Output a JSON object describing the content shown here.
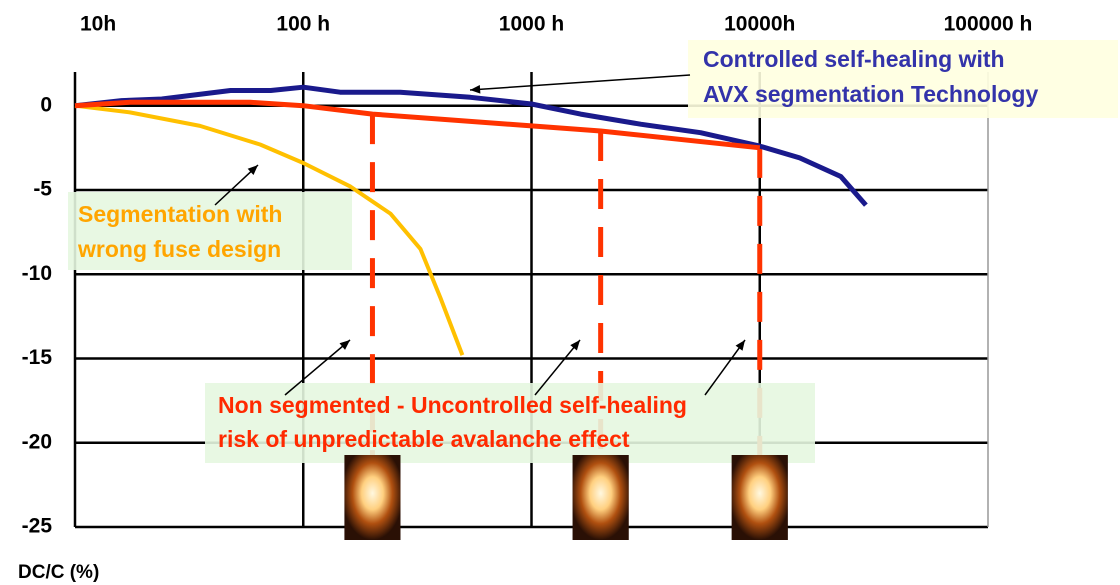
{
  "chart_data": {
    "type": "line",
    "y_label": "DC/C (%)",
    "xscale": "log",
    "xlim": [
      10,
      100000
    ],
    "xticks": [
      {
        "value": 10,
        "label": "10h"
      },
      {
        "value": 100,
        "label": "100 h"
      },
      {
        "value": 1000,
        "label": "1000 h"
      },
      {
        "value": 10000,
        "label": "10000h"
      },
      {
        "value": 100000,
        "label": "100000 h"
      }
    ],
    "ylim": [
      -25,
      2
    ],
    "yticks": [
      0,
      -5,
      -10,
      -15,
      -20,
      -25
    ],
    "grid": true,
    "series": [
      {
        "label": [
          "Controlled self-healing with",
          "AVX segmentation Technology"
        ],
        "color": "#1a1a8c",
        "label_color": "#3333aa",
        "label_bg": "#ffffe0",
        "x": [
          10,
          16,
          24,
          48,
          72,
          100,
          145,
          266,
          540,
          1000,
          1641,
          3006,
          5508,
          10000,
          14970,
          22650,
          29170
        ],
        "values": [
          0,
          0.3,
          0.4,
          0.9,
          0.9,
          1.1,
          0.8,
          0.8,
          0.5,
          0.1,
          -0.5,
          -1.1,
          -1.6,
          -2.4,
          -3.1,
          -4.2,
          -5.9
        ]
      },
      {
        "label": [
          "Segmentation with",
          "wrong fuse design"
        ],
        "color": "#ffc000",
        "label_color": "#ffa500",
        "label_bg": "#e6f7e0",
        "x": [
          10,
          17.4,
          35.3,
          64.7,
          100,
          161,
          241,
          326,
          399,
          498
        ],
        "values": [
          0,
          -0.4,
          -1.2,
          -2.3,
          -3.4,
          -4.8,
          -6.4,
          -8.5,
          -11.4,
          -14.8
        ]
      },
      {
        "label": [
          "Non segmented - Uncontrolled  self-healing",
          "risk of unpredictable avalanche effect"
        ],
        "color": "#ff3300",
        "label_color": "#ff2a00",
        "label_bg": "#e6f7e0",
        "x": [
          10,
          17.4,
          58.6,
          100,
          201,
          1000,
          2009,
          10000
        ],
        "values": [
          0,
          0.2,
          0.2,
          0,
          -0.5,
          -1.2,
          -1.5,
          -2.5
        ],
        "failure_x": [
          201,
          2009,
          10000
        ]
      }
    ]
  }
}
